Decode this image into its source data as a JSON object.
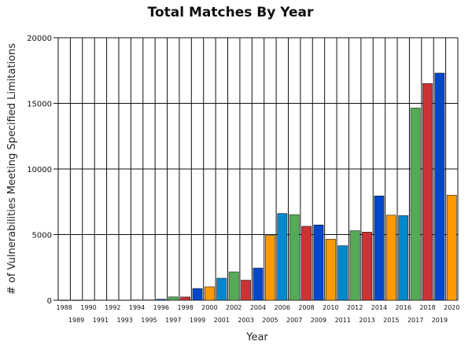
{
  "chart_data": {
    "type": "bar",
    "title": "Total Matches By Year",
    "xlabel": "Year",
    "ylabel": "# of Vulnerabilities Meeting Specified Limitations",
    "ylim": [
      0,
      20000
    ],
    "yticks": [
      0,
      5000,
      10000,
      15000,
      20000
    ],
    "grid": true,
    "categories": [
      "1988",
      "1989",
      "1990",
      "1991",
      "1992",
      "1993",
      "1994",
      "1995",
      "1996",
      "1997",
      "1998",
      "1999",
      "2000",
      "2001",
      "2002",
      "2003",
      "2004",
      "2005",
      "2006",
      "2007",
      "2008",
      "2009",
      "2010",
      "2011",
      "2012",
      "2013",
      "2014",
      "2015",
      "2016",
      "2017",
      "2018",
      "2019",
      "2020"
    ],
    "values": [
      2,
      3,
      11,
      15,
      13,
      13,
      25,
      25,
      75,
      252,
      246,
      894,
      1020,
      1677,
      2156,
      1527,
      2451,
      4935,
      6610,
      6520,
      5632,
      5736,
      4652,
      4155,
      5297,
      5191,
      7946,
      6480,
      6447,
      14643,
      16509,
      17305,
      8000
    ],
    "colors": [
      "#0047cc",
      "#ff9900",
      "#0088cc",
      "#cc3333",
      "#55aa55"
    ],
    "color_sequence": [
      0,
      4,
      1,
      3,
      2,
      4,
      0,
      0,
      0,
      4,
      3,
      0,
      1,
      2,
      4,
      3,
      0,
      1,
      2,
      4,
      3,
      0,
      1,
      2,
      4,
      3,
      0,
      1,
      2,
      4,
      3,
      0,
      1
    ]
  }
}
